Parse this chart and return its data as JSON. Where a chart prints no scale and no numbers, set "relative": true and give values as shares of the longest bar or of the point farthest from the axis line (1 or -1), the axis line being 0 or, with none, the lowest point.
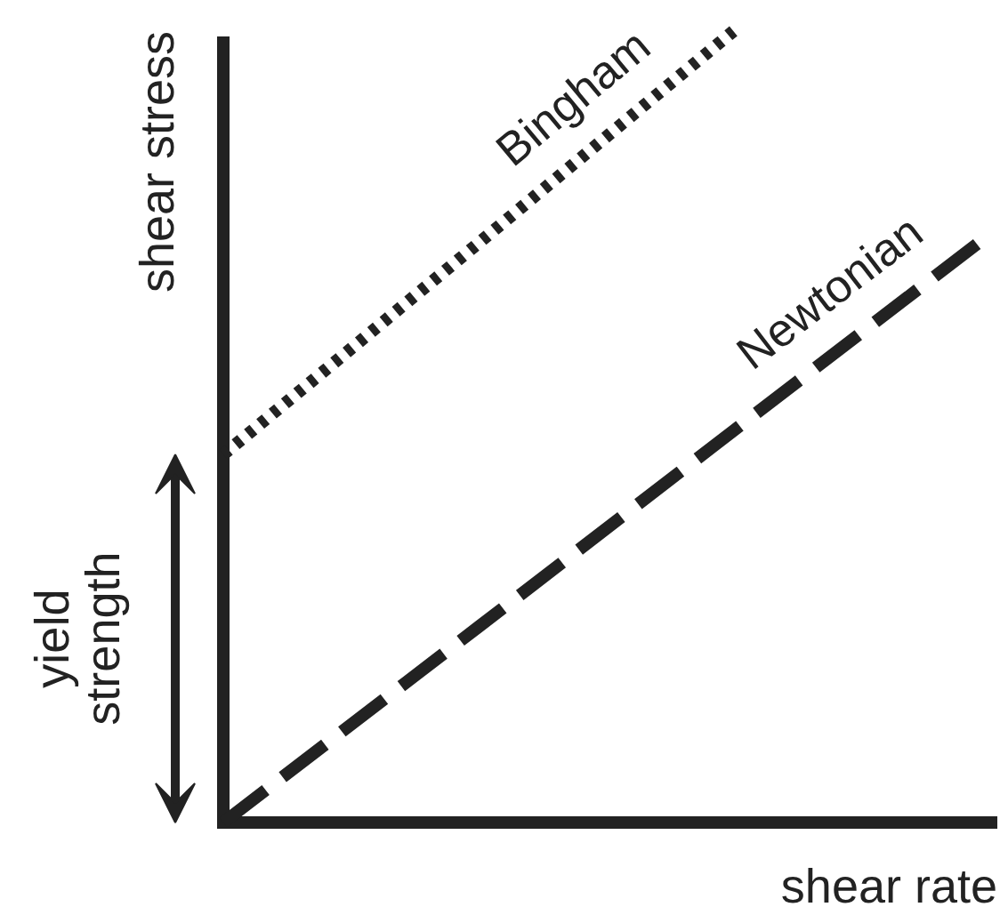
{
  "chart_data": {
    "type": "line",
    "relative": true,
    "xlabel": "shear rate",
    "ylabel": "shear stress",
    "categories": [
      null,
      null,
      null,
      null
    ],
    "series": [
      {
        "name": "Bingham",
        "color": "#222222",
        "line_style": "dotted",
        "values": [
          0.465,
          0.732,
          1.0,
          null
        ]
      },
      {
        "name": "Newtonian",
        "color": "#222222",
        "line_style": "dashed",
        "values": [
          0,
          0.247,
          0.495,
          0.742
        ]
      }
    ],
    "annotations": [
      "yield strength"
    ]
  }
}
